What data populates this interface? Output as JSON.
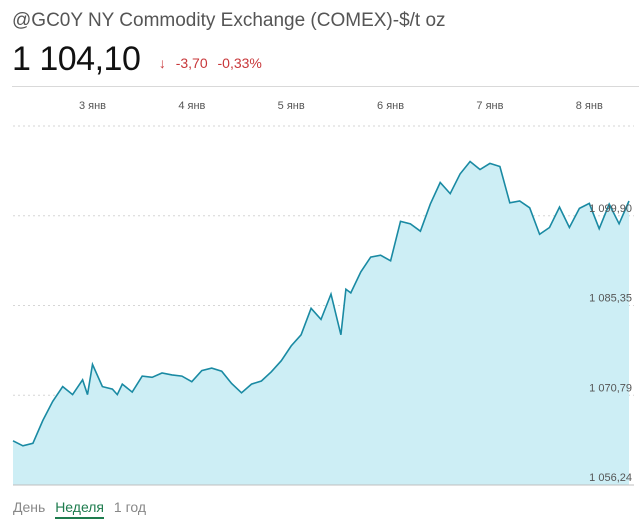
{
  "header": {
    "title": "@GC0Y NY Commodity Exchange (COMEX)-$/t oz",
    "price": "1 104,10",
    "change_arrow": "↓",
    "change_abs": "-3,70",
    "change_pct": "-0,33%"
  },
  "tabs": [
    {
      "label": "День",
      "active": false
    },
    {
      "label": "Неделя",
      "active": true
    },
    {
      "label": "1 год",
      "active": false
    }
  ],
  "colors": {
    "line": "#1a8aa3",
    "fill": "#cdeef5",
    "negative": "#c8373a",
    "active_tab": "#1e7c4e"
  },
  "chart_data": {
    "type": "area",
    "x_ticks": [
      {
        "label": "3 янв",
        "x": 0.8
      },
      {
        "label": "4 янв",
        "x": 1.8
      },
      {
        "label": "5 янв",
        "x": 2.8
      },
      {
        "label": "6 янв",
        "x": 3.8
      },
      {
        "label": "7 янв",
        "x": 4.8
      },
      {
        "label": "8 янв",
        "x": 5.8
      }
    ],
    "y_ticks": [
      {
        "label": "1 099,90",
        "value": 1099.9
      },
      {
        "label": "1 085,35",
        "value": 1085.35
      },
      {
        "label": "1 070,79",
        "value": 1070.79
      },
      {
        "label": "1 056,24",
        "value": 1056.24
      }
    ],
    "xlim": [
      0,
      6.25
    ],
    "ylim": [
      1056.24,
      1114.46
    ],
    "grid": true,
    "series": [
      {
        "x": [
          0.0,
          0.1,
          0.2,
          0.3,
          0.4,
          0.5,
          0.6,
          0.7,
          0.75,
          0.8,
          0.9,
          1.0,
          1.05,
          1.1,
          1.2,
          1.3,
          1.4,
          1.5,
          1.6,
          1.7,
          1.8,
          1.9,
          2.0,
          2.1,
          2.2,
          2.3,
          2.4,
          2.5,
          2.6,
          2.7,
          2.8,
          2.9,
          3.0,
          3.1,
          3.2,
          3.3,
          3.35,
          3.4,
          3.5,
          3.6,
          3.7,
          3.8,
          3.9,
          4.0,
          4.1,
          4.2,
          4.3,
          4.4,
          4.5,
          4.6,
          4.7,
          4.8,
          4.9,
          5.0,
          5.1,
          5.2,
          5.3,
          5.4,
          5.5,
          5.6,
          5.7,
          5.8,
          5.9,
          6.0,
          6.1,
          6.2
        ],
        "values": [
          1063.4,
          1062.6,
          1063.0,
          1066.7,
          1069.8,
          1072.2,
          1070.9,
          1073.3,
          1070.9,
          1075.8,
          1072.2,
          1071.8,
          1070.9,
          1072.6,
          1071.3,
          1073.9,
          1073.7,
          1074.4,
          1074.1,
          1073.9,
          1073.0,
          1074.8,
          1075.2,
          1074.7,
          1072.7,
          1071.2,
          1072.6,
          1073.1,
          1074.6,
          1076.4,
          1078.8,
          1080.6,
          1084.9,
          1083.1,
          1087.2,
          1080.6,
          1088.0,
          1087.4,
          1090.8,
          1093.2,
          1093.5,
          1092.6,
          1099.0,
          1098.6,
          1097.4,
          1101.8,
          1105.3,
          1103.5,
          1106.7,
          1108.7,
          1107.4,
          1108.4,
          1107.9,
          1102.0,
          1102.3,
          1101.2,
          1096.9,
          1098.0,
          1101.3,
          1098.0,
          1101.1,
          1101.9,
          1097.8,
          1101.8,
          1098.6,
          1102.3
        ]
      }
    ]
  }
}
